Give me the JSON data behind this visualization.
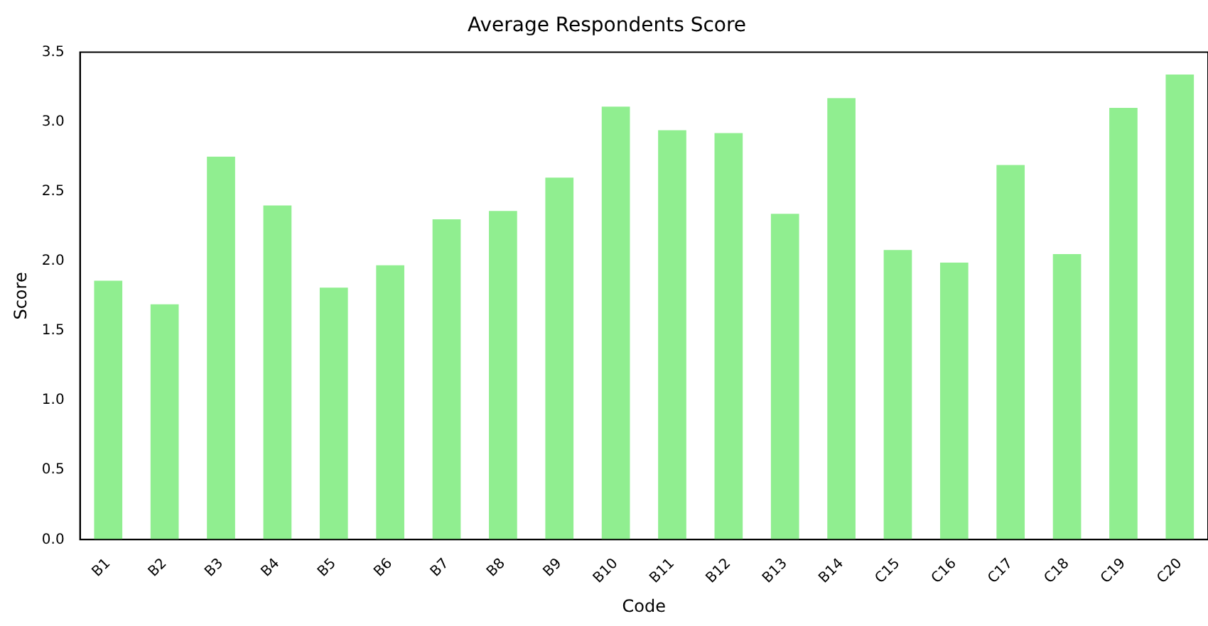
{
  "chart_data": {
    "type": "bar",
    "title": "Average Respondents Score",
    "xlabel": "Code",
    "ylabel": "Score",
    "categories": [
      "B1",
      "B2",
      "B3",
      "B4",
      "B5",
      "B6",
      "B7",
      "B8",
      "B9",
      "B10",
      "B11",
      "B12",
      "B13",
      "B14",
      "C15",
      "C16",
      "C17",
      "C18",
      "C19",
      "C20"
    ],
    "values": [
      1.86,
      1.69,
      2.75,
      2.4,
      1.81,
      1.97,
      2.3,
      2.36,
      2.6,
      3.11,
      2.94,
      2.92,
      2.34,
      3.17,
      2.08,
      1.99,
      2.69,
      2.05,
      3.1,
      3.34
    ],
    "color": "#90ee90",
    "ylim": [
      0,
      3.5
    ],
    "yticks": [
      {
        "value": 0,
        "label": "0.0"
      },
      {
        "value": 0.5,
        "label": "0.5"
      },
      {
        "value": 1,
        "label": "1.0"
      },
      {
        "value": 1.5,
        "label": "1.5"
      },
      {
        "value": 2,
        "label": "2.0"
      },
      {
        "value": 2.5,
        "label": "2.5"
      },
      {
        "value": 3,
        "label": "3.0"
      },
      {
        "value": 3.5,
        "label": "3.5"
      }
    ],
    "legend": false
  }
}
